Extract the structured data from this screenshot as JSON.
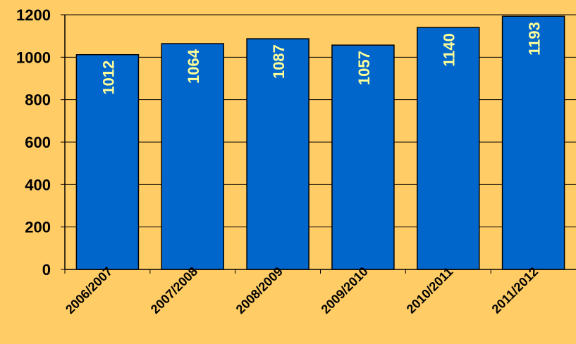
{
  "chart_data": {
    "type": "bar",
    "categories": [
      "2006/2007",
      "2007/2008",
      "2008/2009",
      "2009/2010",
      "2010/2011",
      "2011/2012"
    ],
    "values": [
      1012,
      1064,
      1087,
      1057,
      1140,
      1193
    ],
    "data_labels": [
      "1012",
      "1064",
      "1087",
      "1057",
      "1140",
      "1193"
    ],
    "title": "",
    "xlabel": "",
    "ylabel": "",
    "ylim": [
      0,
      1200
    ],
    "yticks": [
      0,
      200,
      400,
      600,
      800,
      1000,
      1200
    ],
    "ytick_labels": [
      "0",
      "200",
      "400",
      "600",
      "800",
      "1000",
      "1200"
    ],
    "grid": true,
    "legend": "none",
    "colors": {
      "background": "#FFCC66",
      "bar_fill": "#0066CC",
      "bar_stroke": "#000000",
      "data_label": "#FFFF99",
      "text": "#000000",
      "grid": "#000000"
    }
  }
}
